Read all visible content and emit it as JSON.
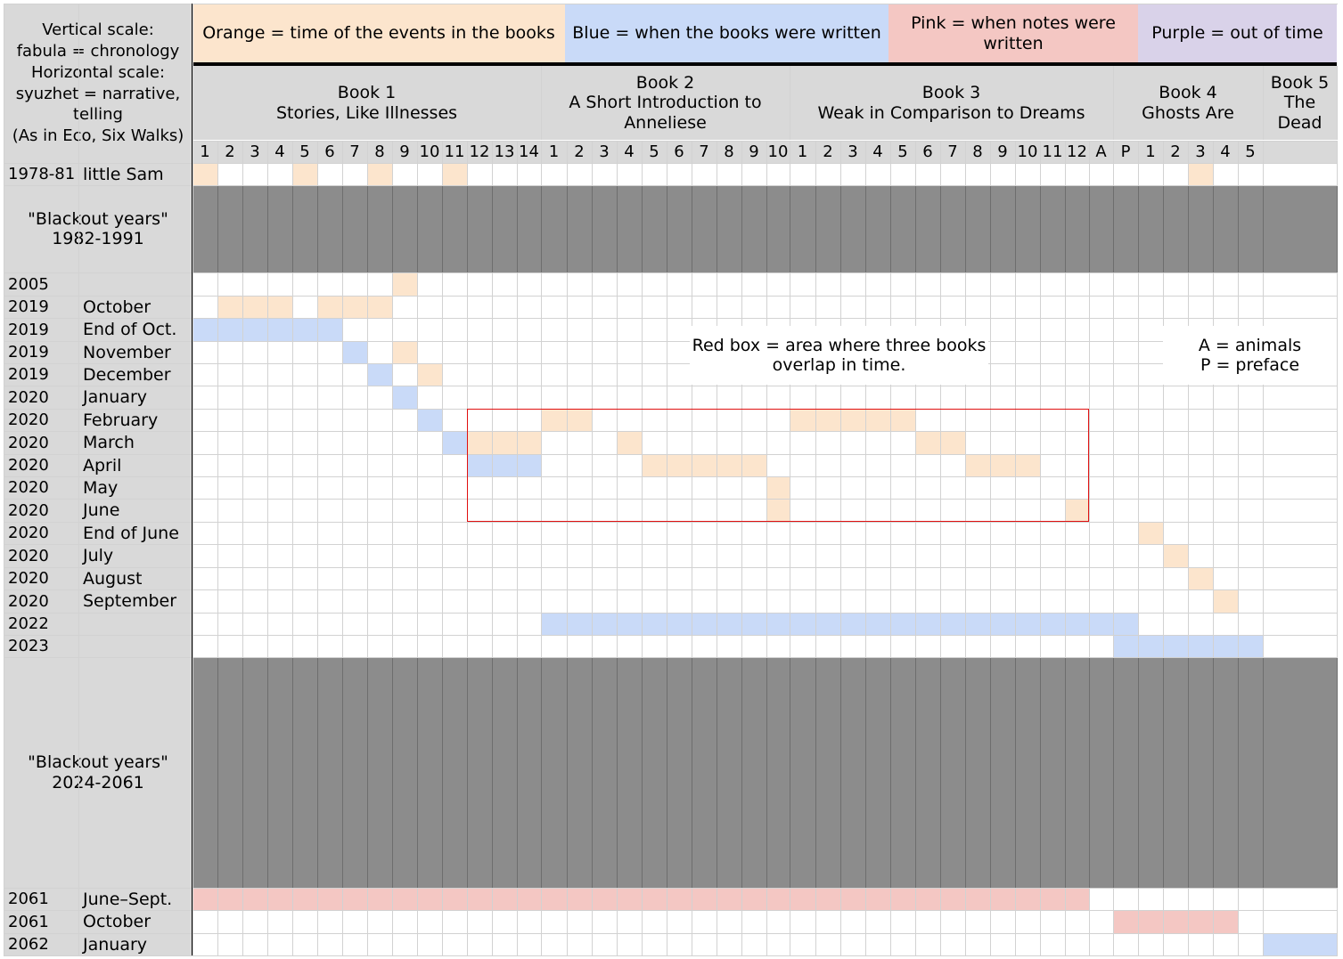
{
  "legend": {
    "scale_note": "Vertical scale:\nfabula = chronology\nHorizontal scale:\nsyuzhet = narrative,\ntelling\n(As in Eco, Six Walks)",
    "orange": "Orange = time of the events in the books",
    "blue": "Blue = when the books were written",
    "pink": "Pink = when notes were\nwritten",
    "purple": "Purple = out of time"
  },
  "colors": {
    "orange": "#fce5cd",
    "blue": "#c9daf8",
    "pink": "#f4c7c3",
    "purple": "#d9d2e9",
    "header_gray": "#d9d9d9",
    "blackout": "#8c8c8c",
    "red_box": "#e01010"
  },
  "books": [
    {
      "label": "Book 1\nStories, Like Illnesses"
    },
    {
      "label": "Book 2\nA Short Introduction to\nAnneliese"
    },
    {
      "label": "Book 3\nWeak in Comparison to Dreams"
    },
    {
      "label": "Book 4\nGhosts Are"
    },
    {
      "label": "Book 5\nThe\nDead"
    }
  ],
  "chapters": [
    "1",
    "2",
    "3",
    "4",
    "5",
    "6",
    "7",
    "8",
    "9",
    "10",
    "11",
    "12",
    "13",
    "14",
    "1",
    "2",
    "3",
    "4",
    "5",
    "6",
    "7",
    "8",
    "9",
    "10",
    "1",
    "2",
    "3",
    "4",
    "5",
    "6",
    "7",
    "8",
    "9",
    "10",
    "11",
    "12",
    "A",
    "P",
    "1",
    "2",
    "3",
    "4",
    "5",
    ""
  ],
  "rows": [
    {
      "year": "1978-81",
      "label": "little Sam"
    },
    {
      "blackout": "\"Blackout years\"\n1982-1991"
    },
    {
      "year": "2005",
      "label": ""
    },
    {
      "year": "2019",
      "label": "October"
    },
    {
      "year": "2019",
      "label": "End of Oct."
    },
    {
      "year": "2019",
      "label": "November"
    },
    {
      "year": "2019",
      "label": "December"
    },
    {
      "year": "2020",
      "label": "January"
    },
    {
      "year": "2020",
      "label": "February"
    },
    {
      "year": "2020",
      "label": "March"
    },
    {
      "year": "2020",
      "label": "April"
    },
    {
      "year": "2020",
      "label": "May"
    },
    {
      "year": "2020",
      "label": "June"
    },
    {
      "year": "2020",
      "label": "End of June"
    },
    {
      "year": "2020",
      "label": "July"
    },
    {
      "year": "2020",
      "label": "August"
    },
    {
      "year": "2020",
      "label": "September"
    },
    {
      "year": "2022",
      "label": ""
    },
    {
      "year": "2023",
      "label": ""
    },
    {
      "blackout": "\"Blackout years\"\n2024-2061"
    },
    {
      "year": "2061",
      "label": "June–Sept."
    },
    {
      "year": "2061",
      "label": "October"
    },
    {
      "year": "2062",
      "label": "January"
    }
  ],
  "notes": {
    "red_box": "Red box = area where three books\noverlap in time.",
    "abbrev": "A = animals\nP = preface"
  },
  "chart_data": {
    "type": "table",
    "title": "",
    "x_axis": "syuzhet (narrative order): Book 1 ch. 1-14, Book 2 ch. 1-10, Book 3 ch. 1-12 + A, Book 4 P + ch. 1-5, Book 5",
    "y_axis": "fabula (chronology)",
    "fills": [
      {
        "row": 0,
        "color": "orange",
        "cols": [
          0,
          4,
          7,
          10,
          40
        ]
      },
      {
        "row": 2,
        "color": "orange",
        "cols": [
          8
        ]
      },
      {
        "row": 3,
        "color": "orange",
        "cols": [
          1,
          2,
          3,
          5,
          6,
          7
        ]
      },
      {
        "row": 4,
        "color": "blue",
        "cols": [
          0,
          1,
          2,
          3,
          4,
          5
        ]
      },
      {
        "row": 5,
        "color": "blue",
        "cols": [
          6
        ]
      },
      {
        "row": 5,
        "color": "orange",
        "cols": [
          8
        ]
      },
      {
        "row": 6,
        "color": "blue",
        "cols": [
          7
        ]
      },
      {
        "row": 6,
        "color": "orange",
        "cols": [
          9
        ]
      },
      {
        "row": 7,
        "color": "blue",
        "cols": [
          8
        ]
      },
      {
        "row": 8,
        "color": "blue",
        "cols": [
          9
        ]
      },
      {
        "row": 8,
        "color": "orange",
        "cols": [
          14,
          15,
          24,
          25,
          26,
          27,
          28
        ]
      },
      {
        "row": 9,
        "color": "blue",
        "cols": [
          10
        ]
      },
      {
        "row": 9,
        "color": "orange",
        "cols": [
          11,
          12,
          13,
          17,
          29,
          30
        ]
      },
      {
        "row": 10,
        "color": "blue",
        "cols": [
          11,
          12,
          13
        ]
      },
      {
        "row": 10,
        "color": "orange",
        "cols": [
          18,
          19,
          20,
          21,
          22,
          31,
          32,
          33
        ]
      },
      {
        "row": 11,
        "color": "orange",
        "cols": [
          23
        ]
      },
      {
        "row": 12,
        "color": "orange",
        "cols": [
          23,
          35
        ]
      },
      {
        "row": 13,
        "color": "orange",
        "cols": [
          38
        ]
      },
      {
        "row": 14,
        "color": "orange",
        "cols": [
          39
        ]
      },
      {
        "row": 15,
        "color": "orange",
        "cols": [
          40
        ]
      },
      {
        "row": 16,
        "color": "orange",
        "cols": [
          41
        ]
      },
      {
        "row": 17,
        "color": "blue",
        "cols": [
          14,
          15,
          16,
          17,
          18,
          19,
          20,
          21,
          22,
          23,
          24,
          25,
          26,
          27,
          28,
          29,
          30,
          31,
          32,
          33,
          34,
          35,
          36,
          37
        ]
      },
      {
        "row": 18,
        "color": "blue",
        "cols": [
          37,
          38,
          39,
          40,
          41,
          42
        ]
      },
      {
        "row": 20,
        "color": "pink",
        "cols": [
          0,
          1,
          2,
          3,
          4,
          5,
          6,
          7,
          8,
          9,
          10,
          11,
          12,
          13,
          14,
          15,
          16,
          17,
          18,
          19,
          20,
          21,
          22,
          23,
          24,
          25,
          26,
          27,
          28,
          29,
          30,
          31,
          32,
          33,
          34,
          35
        ]
      },
      {
        "row": 21,
        "color": "pink",
        "cols": [
          37,
          38,
          39,
          40,
          41
        ]
      },
      {
        "row": 22,
        "color": "blue",
        "cols": [
          43
        ]
      }
    ],
    "red_box": {
      "from_row": 8,
      "to_row": 12,
      "from_col": 11,
      "to_col": 35
    }
  }
}
